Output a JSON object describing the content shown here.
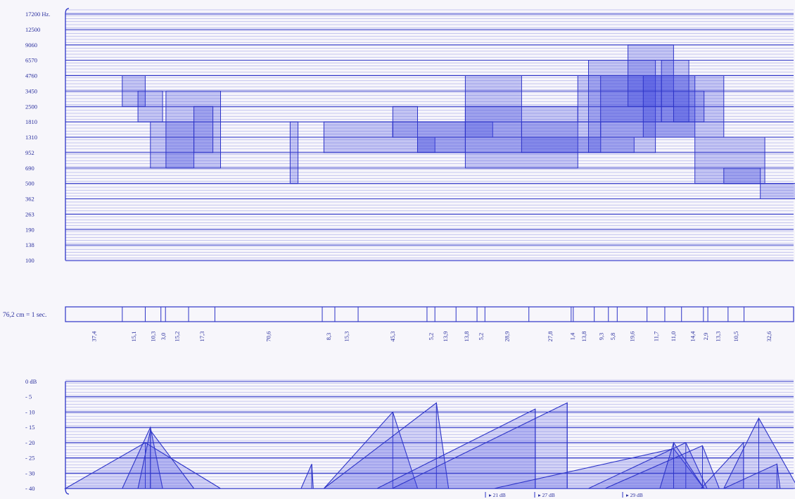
{
  "chart_data": {
    "type": "spectrogram-score",
    "colors": {
      "ink": "#2d34c8",
      "fill": "#3f48e0",
      "paper": "#f7f6fb"
    },
    "frequency_panel": {
      "unit_label": "17200 Hz.",
      "tick_labels": [
        "17200 Hz.",
        "12500",
        "9060",
        "6570",
        "4760",
        "3450",
        "2500",
        "1810",
        "1310",
        "952",
        "690",
        "500",
        "362",
        "263",
        "190",
        "138",
        "100"
      ],
      "boxes": [
        {
          "start": 37.4,
          "end": 52.5,
          "f_lo": "2500",
          "f_hi": "4760"
        },
        {
          "start": 47.7,
          "end": 63.9,
          "f_lo": "1810",
          "f_hi": "3450"
        },
        {
          "start": 55.9,
          "end": 84.5,
          "f_lo": "690",
          "f_hi": "1810"
        },
        {
          "start": 66.1,
          "end": 102.0,
          "f_lo": "690",
          "f_hi": "3450"
        },
        {
          "start": 84.5,
          "end": 97.0,
          "f_lo": "952",
          "f_hi": "2500"
        },
        {
          "start": 147.8,
          "end": 153.0,
          "f_lo": "500",
          "f_hi": "1810"
        },
        {
          "start": 170.0,
          "end": 243.0,
          "f_lo": "952",
          "f_hi": "1310"
        },
        {
          "start": 170.0,
          "end": 215.3,
          "f_lo": "1310",
          "f_hi": "1810"
        },
        {
          "start": 215.3,
          "end": 231.6,
          "f_lo": "1310",
          "f_hi": "2500"
        },
        {
          "start": 231.6,
          "end": 263.0,
          "f_lo": "952",
          "f_hi": "1810"
        },
        {
          "start": 215.3,
          "end": 281.0,
          "f_lo": "1310",
          "f_hi": "1810"
        },
        {
          "start": 231.6,
          "end": 374.0,
          "f_lo": "952",
          "f_hi": "1310"
        },
        {
          "start": 263.0,
          "end": 300.0,
          "f_lo": "1310",
          "f_hi": "4760"
        },
        {
          "start": 263.0,
          "end": 337.0,
          "f_lo": "690",
          "f_hi": "2500"
        },
        {
          "start": 300.0,
          "end": 352.0,
          "f_lo": "952",
          "f_hi": "1810"
        },
        {
          "start": 337.0,
          "end": 392.0,
          "f_lo": "1810",
          "f_hi": "4760"
        },
        {
          "start": 344.0,
          "end": 388.0,
          "f_lo": "952",
          "f_hi": "6570"
        },
        {
          "start": 352.0,
          "end": 414.0,
          "f_lo": "1310",
          "f_hi": "4760"
        },
        {
          "start": 370.0,
          "end": 400.0,
          "f_lo": "2500",
          "f_hi": "9060"
        },
        {
          "start": 380.0,
          "end": 433.0,
          "f_lo": "1310",
          "f_hi": "4760"
        },
        {
          "start": 392.0,
          "end": 410.0,
          "f_lo": "1810",
          "f_hi": "6570"
        },
        {
          "start": 400.0,
          "end": 420.0,
          "f_lo": "1810",
          "f_hi": "3450"
        },
        {
          "start": 414.0,
          "end": 460.0,
          "f_lo": "500",
          "f_hi": "1310"
        },
        {
          "start": 433.0,
          "end": 457.0,
          "f_lo": "500",
          "f_hi": "690"
        },
        {
          "start": 457.0,
          "end": 482.0,
          "f_lo": "362",
          "f_hi": "500"
        }
      ]
    },
    "time_panel": {
      "scale_label": "76,2 cm = 1 sec.",
      "durations": [
        "37,4",
        "15,1",
        "10,3",
        "3,0",
        "15,2",
        "17,3",
        "70,6",
        "8,3",
        "15,3",
        "45,3",
        "5,2",
        "13,9",
        "13,8",
        "5,2",
        "28,9",
        "27,8",
        "1,4",
        "13,8",
        "9,3",
        "5,8",
        "19,6",
        "11,7",
        "11,0",
        "14,4",
        "2,9",
        "13,3",
        "10,5",
        "32,6"
      ]
    },
    "dynamics_panel": {
      "tick_labels": [
        "0  dB",
        "- 5",
        "- 10",
        "- 15",
        "- 20",
        "- 25",
        "- 30",
        "- 40"
      ],
      "partial_labels": [
        "21 dB",
        "27 dB",
        "29 dB"
      ],
      "envelopes": [
        {
          "start": 0.0,
          "peak_t": 52.5,
          "peak_db": -20,
          "end": 102.0
        },
        {
          "start": 37.4,
          "peak_t": 55.9,
          "peak_db": -15,
          "end": 63.9
        },
        {
          "start": 47.7,
          "peak_t": 55.9,
          "peak_db": -16,
          "end": 84.5
        },
        {
          "start": 155.0,
          "peak_t": 162.0,
          "peak_db": -27,
          "end": 163.0
        },
        {
          "start": 170.0,
          "peak_t": 215.3,
          "peak_db": -10,
          "end": 231.6
        },
        {
          "start": 170.0,
          "peak_t": 244.0,
          "peak_db": -7,
          "end": 252.0
        },
        {
          "start": 205.0,
          "peak_t": 309.0,
          "peak_db": -9,
          "end": 309.0
        },
        {
          "start": 215.0,
          "peak_t": 330.0,
          "peak_db": -7,
          "end": 330.0
        },
        {
          "start": 282.0,
          "peak_t": 400.0,
          "peak_db": -22,
          "end": 420.0
        },
        {
          "start": 344.0,
          "peak_t": 408.0,
          "peak_db": -20,
          "end": 422.0
        },
        {
          "start": 355.0,
          "peak_t": 419.0,
          "peak_db": -21,
          "end": 430.0
        },
        {
          "start": 391.0,
          "peak_t": 400.0,
          "peak_db": -20,
          "end": 420.0
        },
        {
          "start": 418.0,
          "peak_t": 446.0,
          "peak_db": -20,
          "end": 446.0
        },
        {
          "start": 433.0,
          "peak_t": 456.0,
          "peak_db": -12,
          "end": 482.0
        },
        {
          "start": 433.0,
          "peak_t": 468.0,
          "peak_db": -27,
          "end": 470.0
        }
      ]
    }
  }
}
